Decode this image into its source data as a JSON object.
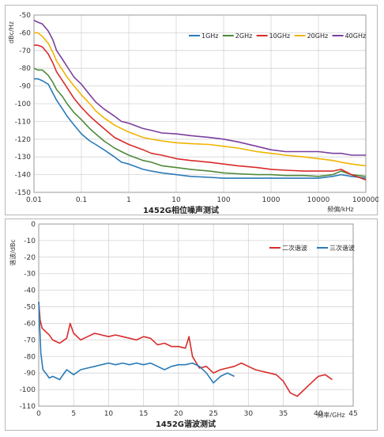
{
  "chart_data": [
    {
      "type": "line",
      "title": "1452G相位噪声测试",
      "ylabel": "dBc/Hz",
      "xlabel": "频偏/kHz",
      "xscale": "log",
      "xlim": [
        0.01,
        100000
      ],
      "ylim": [
        -150,
        -50
      ],
      "x_ticks": [
        "0.01",
        "0.1",
        "1",
        "10",
        "100",
        "1000",
        "10000",
        "100000"
      ],
      "y_ticks": [
        "-50",
        "-60",
        "-70",
        "-80",
        "-90",
        "-100",
        "-110",
        "-120",
        "-130",
        "-140",
        "-150"
      ],
      "grid": true,
      "legend_position": "top-right",
      "series": [
        {
          "name": "1GHz",
          "color": "#2a7ab8",
          "x": [
            0.01,
            0.012,
            0.015,
            0.02,
            0.025,
            0.03,
            0.04,
            0.05,
            0.07,
            0.1,
            0.15,
            0.2,
            0.3,
            0.5,
            0.7,
            1,
            2,
            3,
            5,
            10,
            20,
            50,
            100,
            200,
            500,
            1000,
            2000,
            5000,
            10000,
            20000,
            30000,
            50000,
            100000
          ],
          "y": [
            -86,
            -86,
            -87,
            -89,
            -94,
            -98,
            -103,
            -107,
            -112,
            -117,
            -121,
            -123,
            -126,
            -130,
            -133,
            -134,
            -137,
            -138,
            -139,
            -140,
            -141,
            -141.5,
            -142,
            -142,
            -142,
            -142,
            -142,
            -142,
            -142,
            -141,
            -140,
            -141,
            -142
          ]
        },
        {
          "name": "2GHz",
          "color": "#4e8a3a",
          "x": [
            0.01,
            0.012,
            0.015,
            0.02,
            0.025,
            0.03,
            0.04,
            0.05,
            0.07,
            0.1,
            0.15,
            0.2,
            0.3,
            0.5,
            0.7,
            1,
            2,
            3,
            5,
            10,
            20,
            50,
            100,
            200,
            500,
            1000,
            2000,
            5000,
            10000,
            20000,
            30000,
            50000,
            100000
          ],
          "y": [
            -80,
            -81,
            -81,
            -84,
            -88,
            -92,
            -96,
            -100,
            -105,
            -109,
            -114,
            -117,
            -121,
            -125,
            -127,
            -129,
            -132,
            -133,
            -135,
            -136,
            -137,
            -138,
            -139,
            -139.5,
            -140,
            -140,
            -140.5,
            -140.5,
            -141,
            -140,
            -138,
            -140,
            -141
          ]
        },
        {
          "name": "10GHz",
          "color": "#d92b2b",
          "x": [
            0.01,
            0.012,
            0.015,
            0.02,
            0.025,
            0.03,
            0.04,
            0.05,
            0.07,
            0.1,
            0.15,
            0.2,
            0.3,
            0.5,
            0.7,
            1,
            2,
            3,
            5,
            10,
            20,
            50,
            100,
            200,
            500,
            1000,
            2000,
            5000,
            10000,
            20000,
            30000,
            50000,
            100000
          ],
          "y": [
            -67,
            -67,
            -68,
            -72,
            -77,
            -82,
            -87,
            -91,
            -97,
            -102,
            -107,
            -110,
            -114,
            -119,
            -121,
            -123,
            -126,
            -128,
            -129,
            -131,
            -132,
            -133,
            -134,
            -135,
            -136,
            -137,
            -137.5,
            -138,
            -138,
            -138,
            -137,
            -140,
            -143
          ]
        },
        {
          "name": "20GHz",
          "color": "#f0b400",
          "x": [
            0.01,
            0.012,
            0.015,
            0.02,
            0.025,
            0.03,
            0.04,
            0.05,
            0.07,
            0.1,
            0.15,
            0.2,
            0.3,
            0.5,
            0.7,
            1,
            2,
            3,
            5,
            10,
            20,
            50,
            100,
            200,
            500,
            1000,
            2000,
            5000,
            10000,
            20000,
            30000,
            50000,
            100000
          ],
          "y": [
            -60,
            -60,
            -62,
            -66,
            -71,
            -76,
            -81,
            -85,
            -90,
            -95,
            -100,
            -104,
            -108,
            -112,
            -114,
            -116,
            -119,
            -120,
            -121,
            -122,
            -122.5,
            -123,
            -124,
            -125,
            -127,
            -128,
            -129,
            -130,
            -131,
            -132,
            -133,
            -134,
            -135
          ]
        },
        {
          "name": "40GHz",
          "color": "#7b3f9e",
          "x": [
            0.01,
            0.012,
            0.015,
            0.02,
            0.025,
            0.03,
            0.04,
            0.05,
            0.07,
            0.1,
            0.15,
            0.2,
            0.3,
            0.5,
            0.7,
            1,
            2,
            3,
            5,
            10,
            20,
            50,
            100,
            200,
            500,
            1000,
            2000,
            5000,
            10000,
            20000,
            30000,
            50000,
            100000
          ],
          "y": [
            -53,
            -54,
            -55,
            -59,
            -64,
            -70,
            -75,
            -79,
            -85,
            -89,
            -95,
            -99,
            -103,
            -107,
            -110,
            -111,
            -114,
            -115,
            -116.5,
            -117,
            -118,
            -119,
            -120,
            -121.5,
            -124,
            -126,
            -127,
            -127,
            -127,
            -128,
            -128,
            -129,
            -129
          ]
        }
      ]
    },
    {
      "type": "line",
      "title": "1452G谐波测试",
      "ylabel": "谐波/dBc",
      "xlabel": "频率/GHz",
      "xlim": [
        0,
        45
      ],
      "ylim": [
        -110,
        0
      ],
      "x_ticks": [
        "0",
        "5",
        "10",
        "15",
        "20",
        "25",
        "30",
        "35",
        "40",
        "45"
      ],
      "y_ticks": [
        "0",
        "-10",
        "-20",
        "-30",
        "-40",
        "-50",
        "-60",
        "-70",
        "-80",
        "-90",
        "-100",
        "-110"
      ],
      "grid": true,
      "legend_position": "top-right",
      "series": [
        {
          "name": "二次谐波",
          "color": "#d92b2b",
          "x": [
            0,
            0.2,
            0.5,
            1,
            1.5,
            2,
            3,
            4,
            4.5,
            5,
            6,
            7,
            8,
            9,
            10,
            11,
            12,
            13,
            14,
            15,
            16,
            17,
            18,
            19,
            20,
            21,
            21.5,
            22,
            23,
            24,
            25,
            26,
            27,
            28,
            29,
            30,
            31,
            32,
            33,
            34,
            35,
            36,
            37,
            38,
            39,
            40,
            41,
            42
          ],
          "y": [
            -47,
            -58,
            -63,
            -65,
            -67,
            -70,
            -72,
            -69,
            -60,
            -66,
            -70,
            -68,
            -66,
            -67,
            -68,
            -67,
            -68,
            -69,
            -70,
            -68,
            -69,
            -73,
            -72,
            -74,
            -74,
            -75,
            -68,
            -80,
            -87,
            -86,
            -90,
            -88,
            -87,
            -86,
            -84,
            -86,
            -88,
            -89,
            -90,
            -91,
            -95,
            -102,
            -104,
            -100,
            -96,
            -92,
            -91,
            -94
          ]
        },
        {
          "name": "三次谐波",
          "color": "#2a7ab8",
          "x": [
            0,
            0.3,
            0.6,
            1,
            1.5,
            2,
            3,
            4,
            5,
            6,
            7,
            8,
            9,
            10,
            11,
            12,
            13,
            14,
            15,
            16,
            17,
            18,
            19,
            20,
            21,
            22,
            23,
            24,
            25,
            26,
            27,
            28
          ],
          "y": [
            -47,
            -78,
            -88,
            -90,
            -93,
            -92,
            -94,
            -88,
            -91,
            -88,
            -87,
            -86,
            -85,
            -84,
            -85,
            -84,
            -85,
            -84,
            -85,
            -84,
            -86,
            -88,
            -86,
            -85,
            -85,
            -84,
            -86,
            -90,
            -96,
            -92,
            -90,
            -92
          ]
        }
      ]
    }
  ]
}
